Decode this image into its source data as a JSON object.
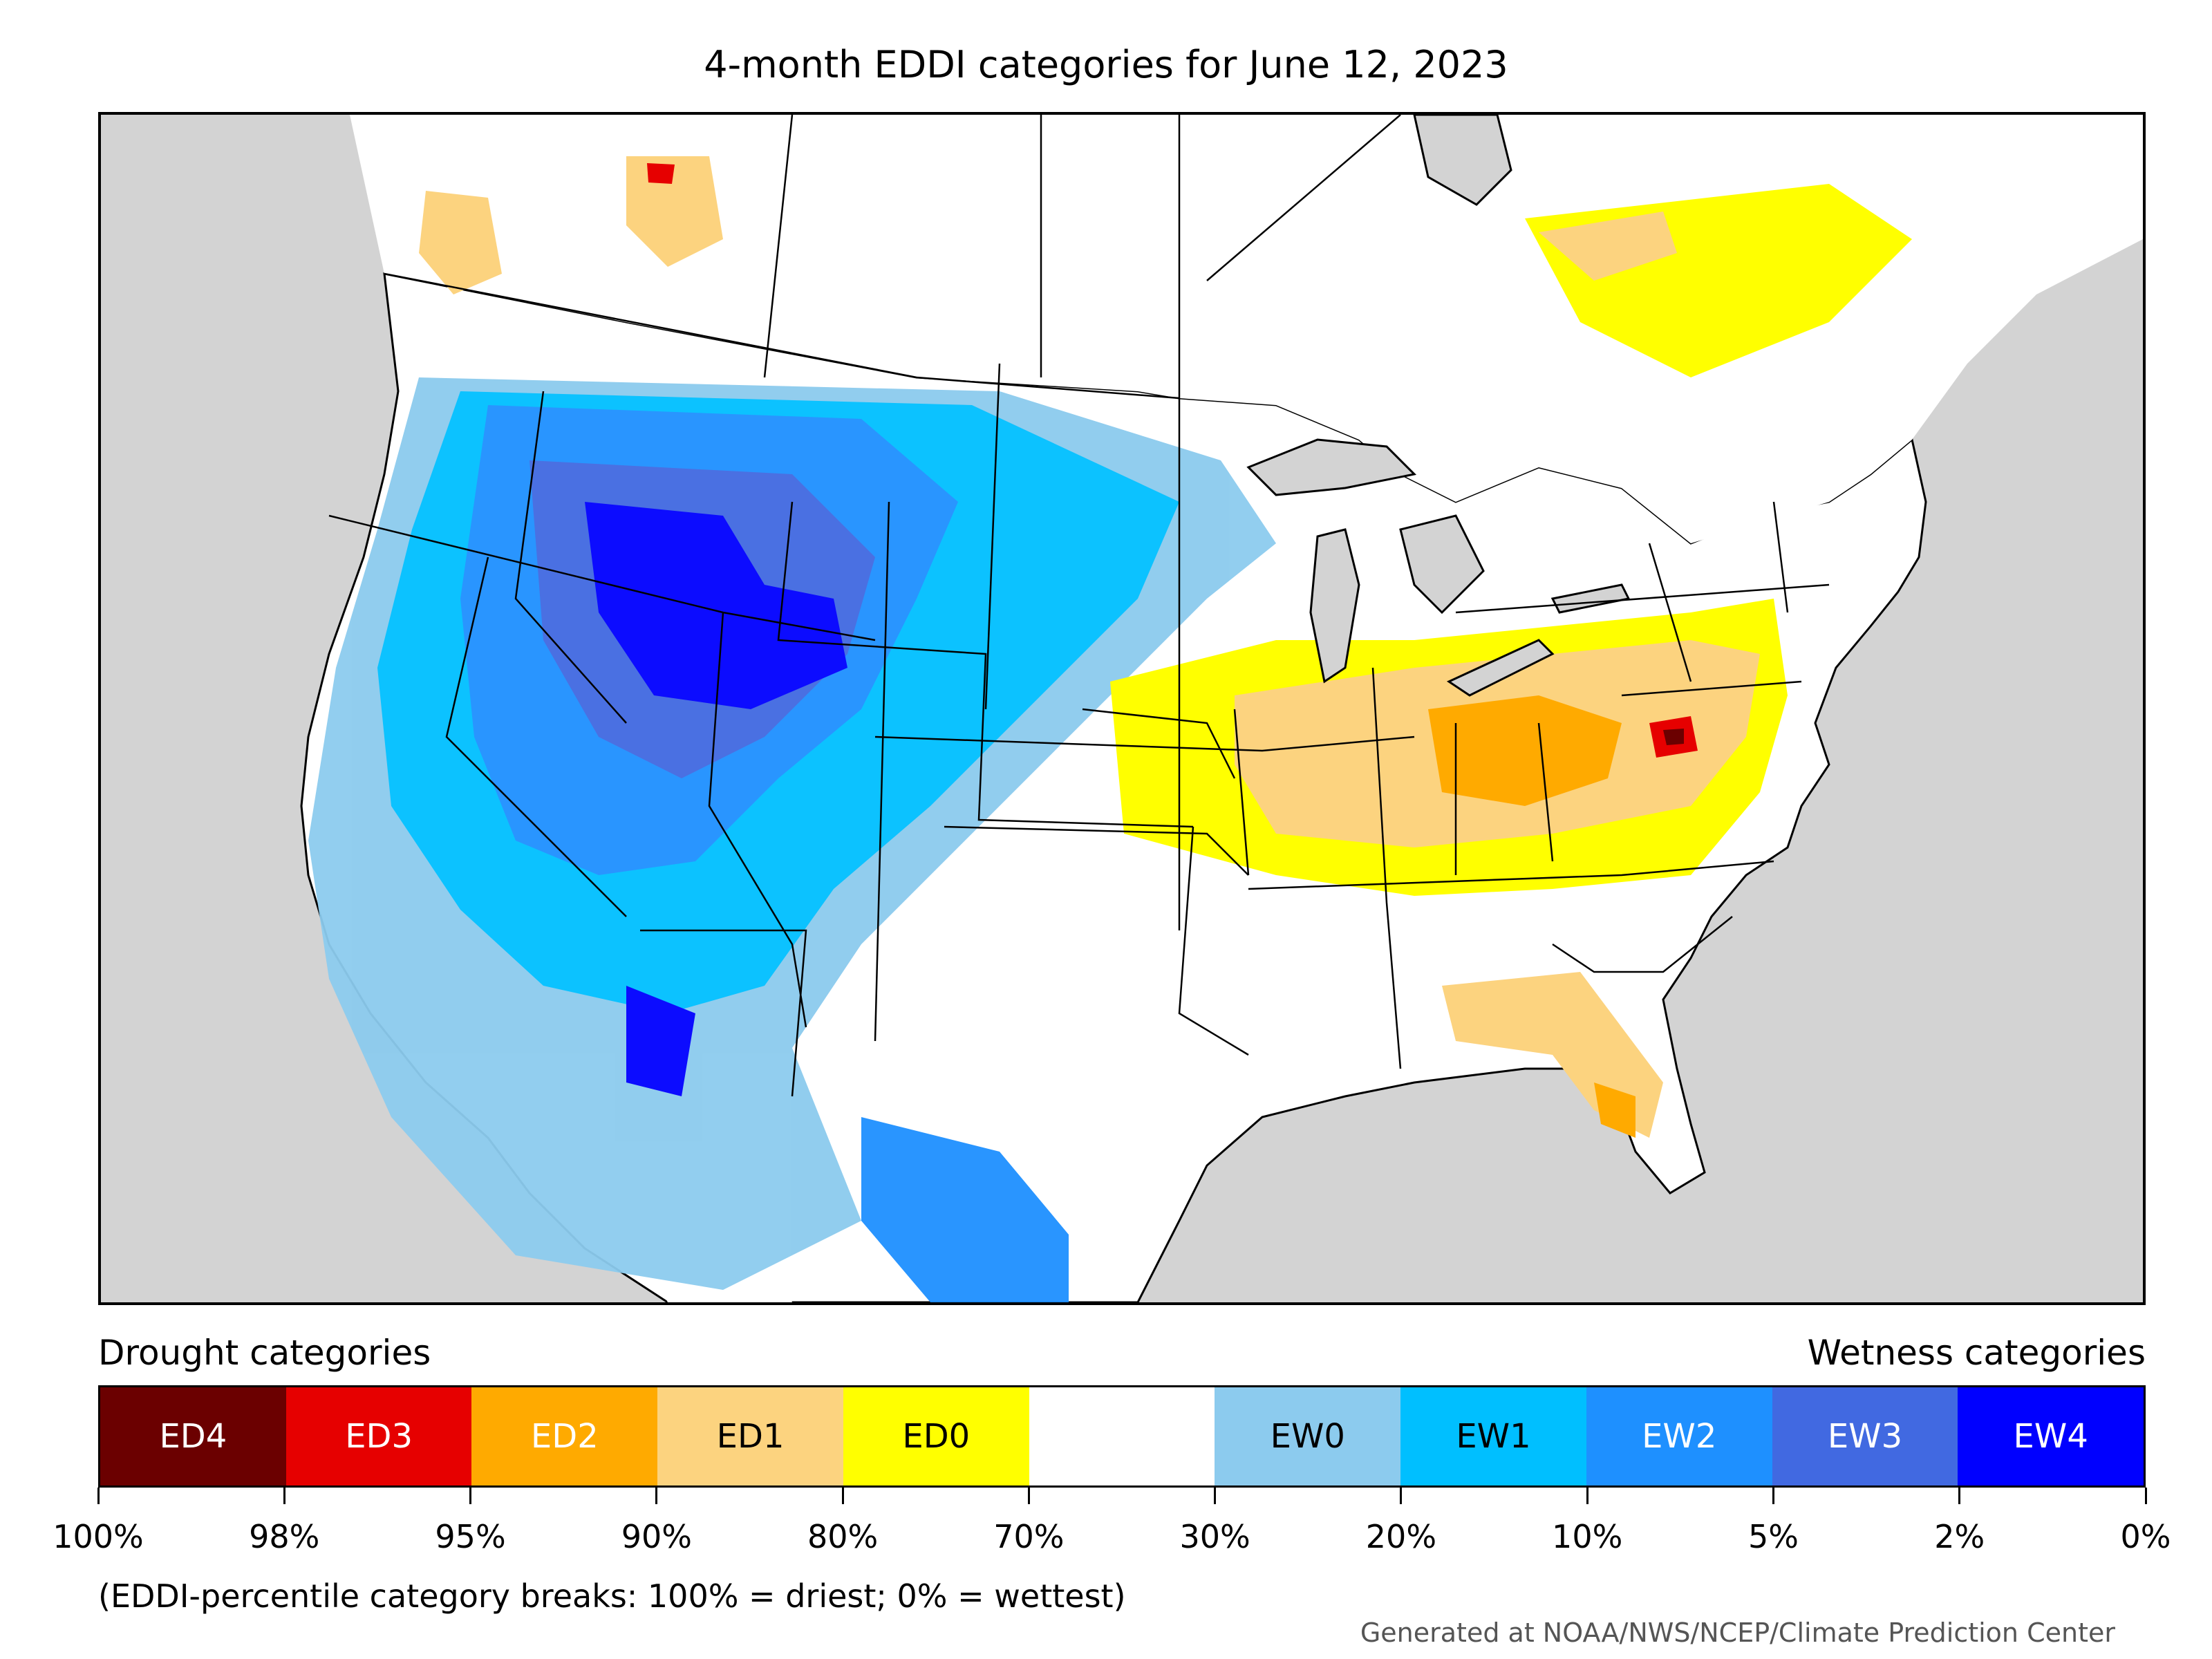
{
  "title": "4-month EDDI categories for June 12, 2023",
  "legend": {
    "drought_label": "Drought categories",
    "wetness_label": "Wetness categories",
    "categories": [
      {
        "code": "ED4",
        "color": "#6b0000",
        "text_color": "#ffffff"
      },
      {
        "code": "ED3",
        "color": "#e60000",
        "text_color": "#ffffff"
      },
      {
        "code": "ED2",
        "color": "#ffaa00",
        "text_color": "#ffffff"
      },
      {
        "code": "ED1",
        "color": "#fcd37f",
        "text_color": "#000000"
      },
      {
        "code": "ED0",
        "color": "#ffff00",
        "text_color": "#000000"
      },
      {
        "code": "",
        "color": "#ffffff",
        "text_color": "#000000"
      },
      {
        "code": "EW0",
        "color": "#8ccbee",
        "text_color": "#000000"
      },
      {
        "code": "EW1",
        "color": "#00bfff",
        "text_color": "#000000"
      },
      {
        "code": "EW2",
        "color": "#1e90ff",
        "text_color": "#ffffff"
      },
      {
        "code": "EW3",
        "color": "#4169e1",
        "text_color": "#ffffff"
      },
      {
        "code": "EW4",
        "color": "#0000ff",
        "text_color": "#ffffff"
      }
    ],
    "ticks": [
      "100%",
      "98%",
      "95%",
      "90%",
      "80%",
      "70%",
      "30%",
      "20%",
      "10%",
      "5%",
      "2%",
      "0%"
    ]
  },
  "note": "(EDDI-percentile category breaks: 100% = driest; 0% = wettest)",
  "credit": "Generated at NOAA/NWS/NCEP/Climate Prediction Center"
}
